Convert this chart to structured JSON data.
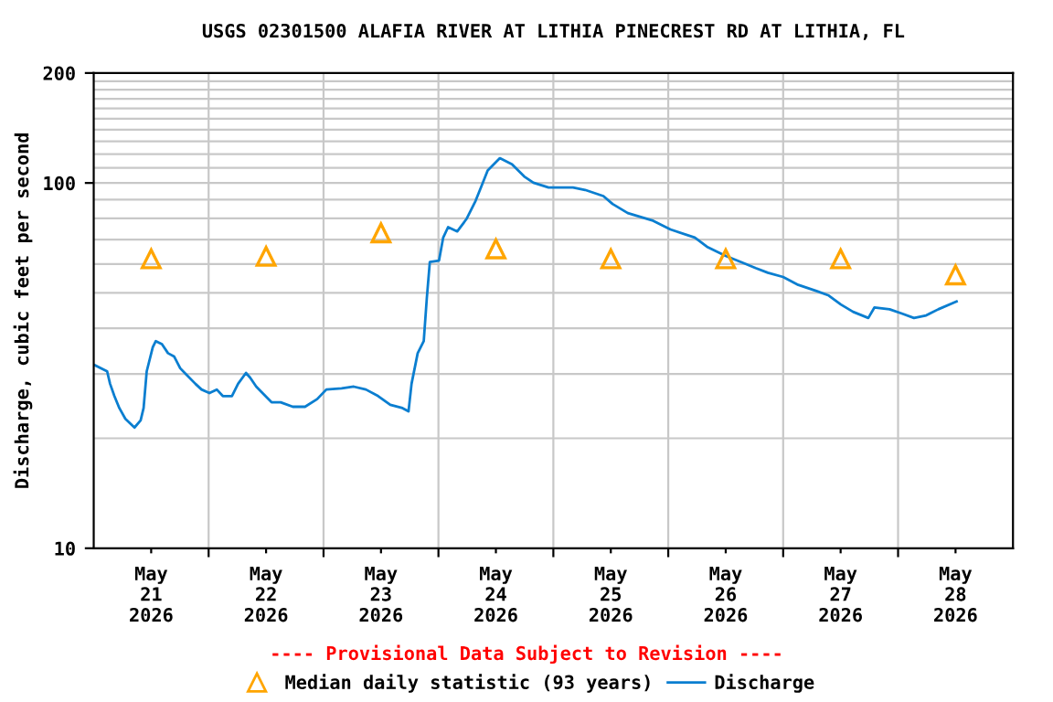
{
  "chart_data": {
    "type": "line",
    "title": "USGS 02301500 ALAFIA RIVER AT LITHIA PINECREST RD AT LITHIA, FL",
    "ylabel": "Discharge, cubic feet per second",
    "annotations": [
      "---- Provisional Data Subject to Revision ----"
    ],
    "log": "y",
    "grid": true,
    "legend": "bottom",
    "xlim": [
      "2026-05-21T00:00",
      "2026-05-29T00:00"
    ],
    "xticks": [
      {
        "value": "2026-05-21T12:00",
        "label": "May\n21\n2026"
      },
      {
        "value": "2026-05-22T00:00",
        "label": null
      },
      {
        "value": "2026-05-22T12:00",
        "label": "May\n22\n2026"
      },
      {
        "value": "2026-05-23T00:00",
        "label": null
      },
      {
        "value": "2026-05-23T12:00",
        "label": "May\n23\n2026"
      },
      {
        "value": "2026-05-24T00:00",
        "label": null
      },
      {
        "value": "2026-05-24T12:00",
        "label": "May\n24\n2026"
      },
      {
        "value": "2026-05-25T00:00",
        "label": null
      },
      {
        "value": "2026-05-25T12:00",
        "label": "May\n25\n2026"
      },
      {
        "value": "2026-05-26T00:00",
        "label": null
      },
      {
        "value": "2026-05-26T12:00",
        "label": "May\n26\n2026"
      },
      {
        "value": "2026-05-27T00:00",
        "label": null
      },
      {
        "value": "2026-05-27T12:00",
        "label": "May\n27\n2026"
      },
      {
        "value": "2026-05-28T00:00",
        "label": null
      },
      {
        "value": "2026-05-28T12:00",
        "label": "May\n28\n2026"
      }
    ],
    "ylim": [
      10,
      200
    ],
    "yticks": [
      10,
      {
        "value": 20,
        "label": null
      },
      {
        "value": 30,
        "label": null
      },
      {
        "value": 40,
        "label": null
      },
      {
        "value": 50,
        "label": null
      },
      {
        "value": 60,
        "label": null
      },
      {
        "value": 70,
        "label": null
      },
      {
        "value": 80,
        "label": null
      },
      {
        "value": 90,
        "label": null
      },
      100,
      {
        "value": 110,
        "label": null
      },
      {
        "value": 120,
        "label": null
      },
      {
        "value": 130,
        "label": null
      },
      {
        "value": 140,
        "label": null
      },
      {
        "value": 150,
        "label": null
      },
      {
        "value": 160,
        "label": null
      },
      {
        "value": 170,
        "label": null
      },
      {
        "value": 180,
        "label": null
      },
      {
        "value": 190,
        "label": null
      },
      200
    ],
    "series": [
      {
        "name": "Median daily statistic (93 years)",
        "type": "scatter",
        "marker": "triangle",
        "color": "#ffa500",
        "x": [
          "2026-05-21T12:00",
          "2026-05-22T12:00",
          "2026-05-23T12:00",
          "2026-05-24T12:00",
          "2026-05-25T12:00",
          "2026-05-26T12:00",
          "2026-05-27T12:00",
          "2026-05-28T12:00"
        ],
        "values": [
          62,
          63,
          73,
          66,
          62,
          62,
          62,
          56
        ]
      },
      {
        "name": "Discharge",
        "marker": "none",
        "line_style": "solid",
        "color": "#0a7ed0",
        "x": [
          "2026-05-21T00:15",
          "2026-05-21T02:48",
          "2026-05-21T03:25",
          "2026-05-21T04:19",
          "2026-05-21T05:21",
          "2026-05-21T06:37",
          "2026-05-21T08:31",
          "2026-05-21T09:48",
          "2026-05-21T10:25",
          "2026-05-21T11:04",
          "2026-05-21T12:20",
          "2026-05-21T12:58",
          "2026-05-21T14:15",
          "2026-05-21T15:31",
          "2026-05-21T16:47",
          "2026-05-21T18:04",
          "2026-05-21T19:20",
          "2026-05-21T21:14",
          "2026-05-21T22:31",
          "2026-05-22T00:10",
          "2026-05-22T01:42",
          "2026-05-22T02:58",
          "2026-05-22T04:52",
          "2026-05-22T06:09",
          "2026-05-22T07:48",
          "2026-05-22T08:41",
          "2026-05-22T09:57",
          "2026-05-22T11:52",
          "2026-05-22T13:08",
          "2026-05-22T15:03",
          "2026-05-22T17:35",
          "2026-05-22T20:08",
          "2026-05-22T22:40",
          "2026-05-23T00:35",
          "2026-05-23T03:46",
          "2026-05-23T06:19",
          "2026-05-23T08:51",
          "2026-05-23T11:24",
          "2026-05-23T13:57",
          "2026-05-23T16:29",
          "2026-05-23T17:45",
          "2026-05-23T18:23",
          "2026-05-23T19:40",
          "2026-05-23T20:56",
          "2026-05-23T21:34",
          "2026-05-23T22:12",
          "2026-05-24T00:07",
          "2026-05-24T01:00",
          "2026-05-24T02:01",
          "2026-05-24T03:56",
          "2026-05-24T05:50",
          "2026-05-24T07:45",
          "2026-05-24T09:01",
          "2026-05-24T10:17",
          "2026-05-24T12:50",
          "2026-05-24T15:22",
          "2026-05-24T17:55",
          "2026-05-24T19:50",
          "2026-05-24T23:00",
          "2026-05-25T04:06",
          "2026-05-25T06:38",
          "2026-05-25T10:27",
          "2026-05-25T12:22",
          "2026-05-25T15:33",
          "2026-05-25T20:38",
          "2026-05-26T00:27",
          "2026-05-26T05:32",
          "2026-05-26T08:05",
          "2026-05-26T11:54",
          "2026-05-26T15:42",
          "2026-05-26T18:15",
          "2026-05-26T20:48",
          "2026-05-26T23:59",
          "2026-05-27T03:09",
          "2026-05-27T06:58",
          "2026-05-27T09:31",
          "2026-05-27T12:03",
          "2026-05-27T14:36",
          "2026-05-27T17:47",
          "2026-05-27T19:03",
          "2026-05-27T22:14",
          "2026-05-28T00:47",
          "2026-05-28T03:19",
          "2026-05-28T05:52",
          "2026-05-28T08:24",
          "2026-05-28T12:13"
        ],
        "values": [
          31.7,
          30.5,
          28.2,
          26.1,
          24.2,
          22.6,
          21.4,
          22.4,
          24.2,
          30.5,
          35.5,
          36.9,
          36.2,
          34.2,
          33.5,
          31.1,
          29.9,
          28.2,
          27.2,
          26.6,
          27.2,
          26.1,
          26.1,
          28.2,
          30.2,
          29.3,
          27.7,
          26.1,
          25.1,
          25.1,
          24.4,
          24.4,
          25.6,
          27.2,
          27.4,
          27.7,
          27.2,
          26.1,
          24.7,
          24.2,
          23.7,
          28.2,
          34.2,
          36.9,
          48.3,
          60.8,
          61.3,
          70.9,
          75.7,
          73.7,
          79.6,
          89.3,
          98.3,
          108.2,
          116.9,
          112.5,
          104.2,
          100.2,
          97.2,
          97.2,
          95.7,
          92.1,
          87.6,
          82.7,
          79.0,
          74.6,
          70.9,
          66.9,
          63.2,
          60.4,
          58.5,
          56.8,
          55.3,
          52.6,
          50.6,
          49.2,
          46.5,
          44.4,
          42.7,
          45.6,
          45.1,
          43.9,
          42.7,
          43.4,
          45.1,
          47.4
        ]
      }
    ]
  }
}
